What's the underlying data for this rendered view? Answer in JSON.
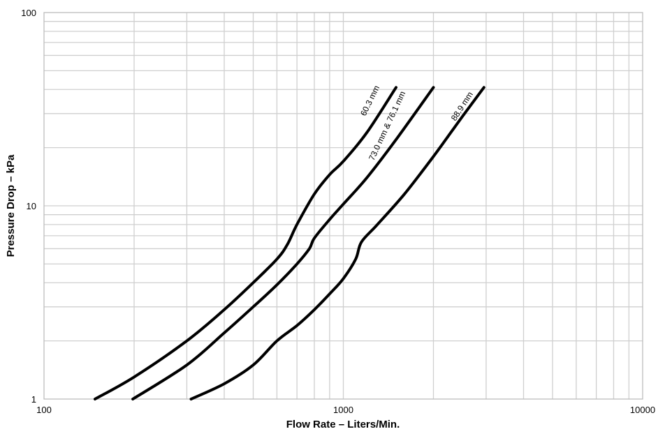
{
  "chart_data": {
    "type": "line",
    "title": "",
    "xlabel": "Flow Rate – Liters/Min.",
    "ylabel": "Pressure Drop – kPa",
    "xscale": "log",
    "yscale": "log",
    "xlim": [
      100,
      10000
    ],
    "ylim": [
      1,
      100
    ],
    "grid": true,
    "legend": "none",
    "x_ticks": [
      "100",
      "1000",
      "10000"
    ],
    "y_ticks": [
      "1",
      "10",
      "100"
    ],
    "series": [
      {
        "name": "60.3 mm",
        "x": [
          148,
          200,
          300,
          400,
          500,
          600,
          650,
          700,
          800,
          900,
          1000,
          1200,
          1500
        ],
        "y": [
          1.0,
          1.3,
          2.0,
          2.9,
          4.0,
          5.3,
          6.3,
          8.0,
          11.5,
          14.5,
          17.0,
          24.0,
          41.0
        ]
      },
      {
        "name": "73.0 mm & 76.1 mm",
        "x": [
          198,
          300,
          400,
          500,
          600,
          700,
          770,
          800,
          900,
          1000,
          1200,
          1500,
          2000
        ],
        "y": [
          1.0,
          1.5,
          2.2,
          3.0,
          3.9,
          5.0,
          6.0,
          6.8,
          8.5,
          10.2,
          14.0,
          22.0,
          41.0
        ]
      },
      {
        "name": "88.9 mm",
        "x": [
          310,
          400,
          500,
          600,
          700,
          800,
          900,
          1000,
          1100,
          1150,
          1300,
          1600,
          2000,
          2500,
          2950
        ],
        "y": [
          1.0,
          1.2,
          1.5,
          2.0,
          2.4,
          2.9,
          3.5,
          4.2,
          5.3,
          6.5,
          8.0,
          11.5,
          18.0,
          29.0,
          41.0
        ]
      }
    ]
  }
}
